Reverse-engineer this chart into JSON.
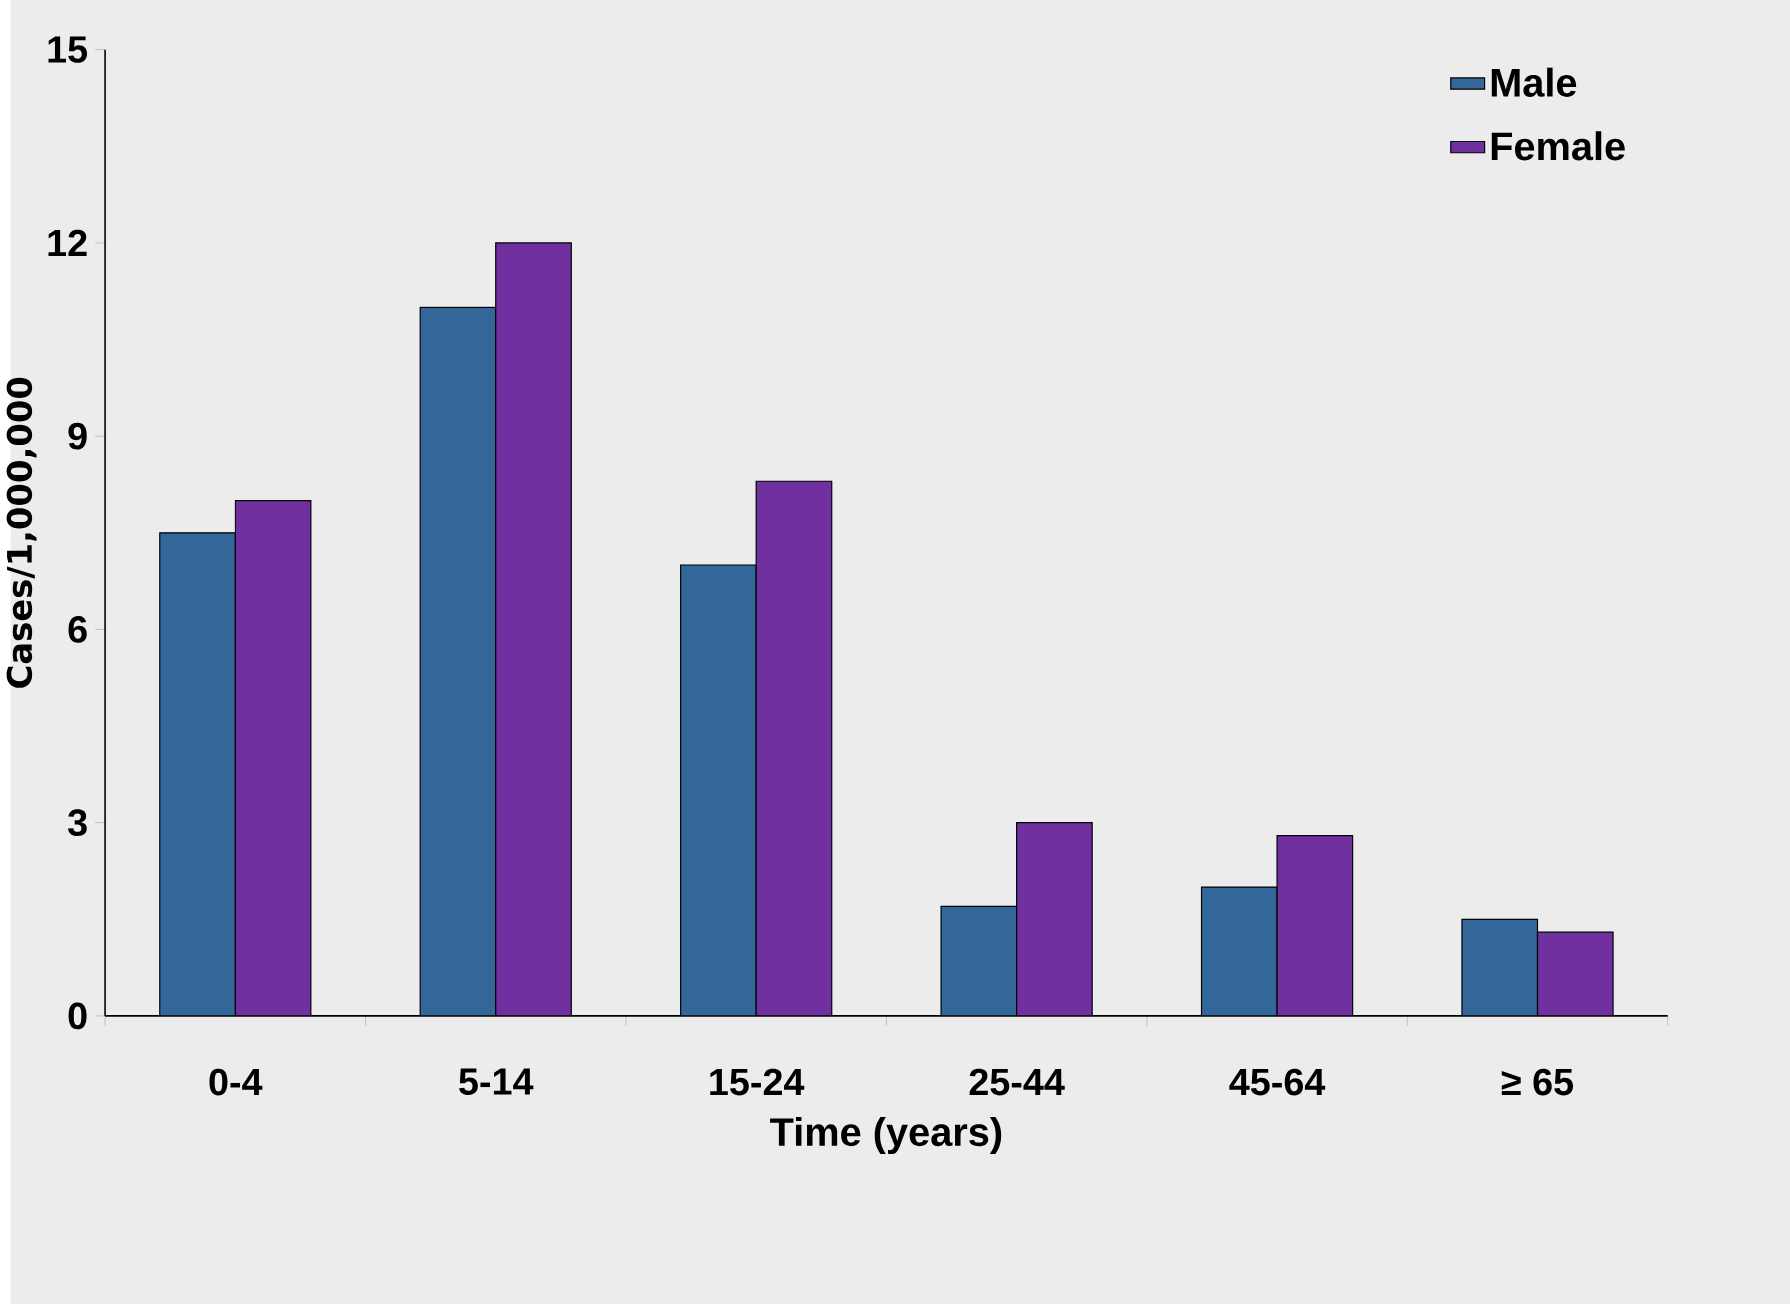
{
  "chart_data": {
    "type": "bar",
    "xlabel": "Time (years)",
    "ylabel": "Cases/1,000,000",
    "categories": [
      "0-4",
      "5-14",
      "15-24",
      "25-44",
      "45-64",
      "≥ 65"
    ],
    "series": [
      {
        "name": "Male",
        "color": "#336699",
        "values": [
          7.5,
          11.0,
          7.0,
          1.7,
          2.0,
          1.5
        ]
      },
      {
        "name": "Female",
        "color": "#7030a0",
        "values": [
          8.0,
          12.0,
          8.3,
          3.0,
          2.8,
          1.3
        ]
      }
    ],
    "ylim": [
      0,
      15
    ],
    "yticks": [
      0,
      3,
      6,
      9,
      12,
      15
    ],
    "grid": false,
    "legend": "top right"
  }
}
